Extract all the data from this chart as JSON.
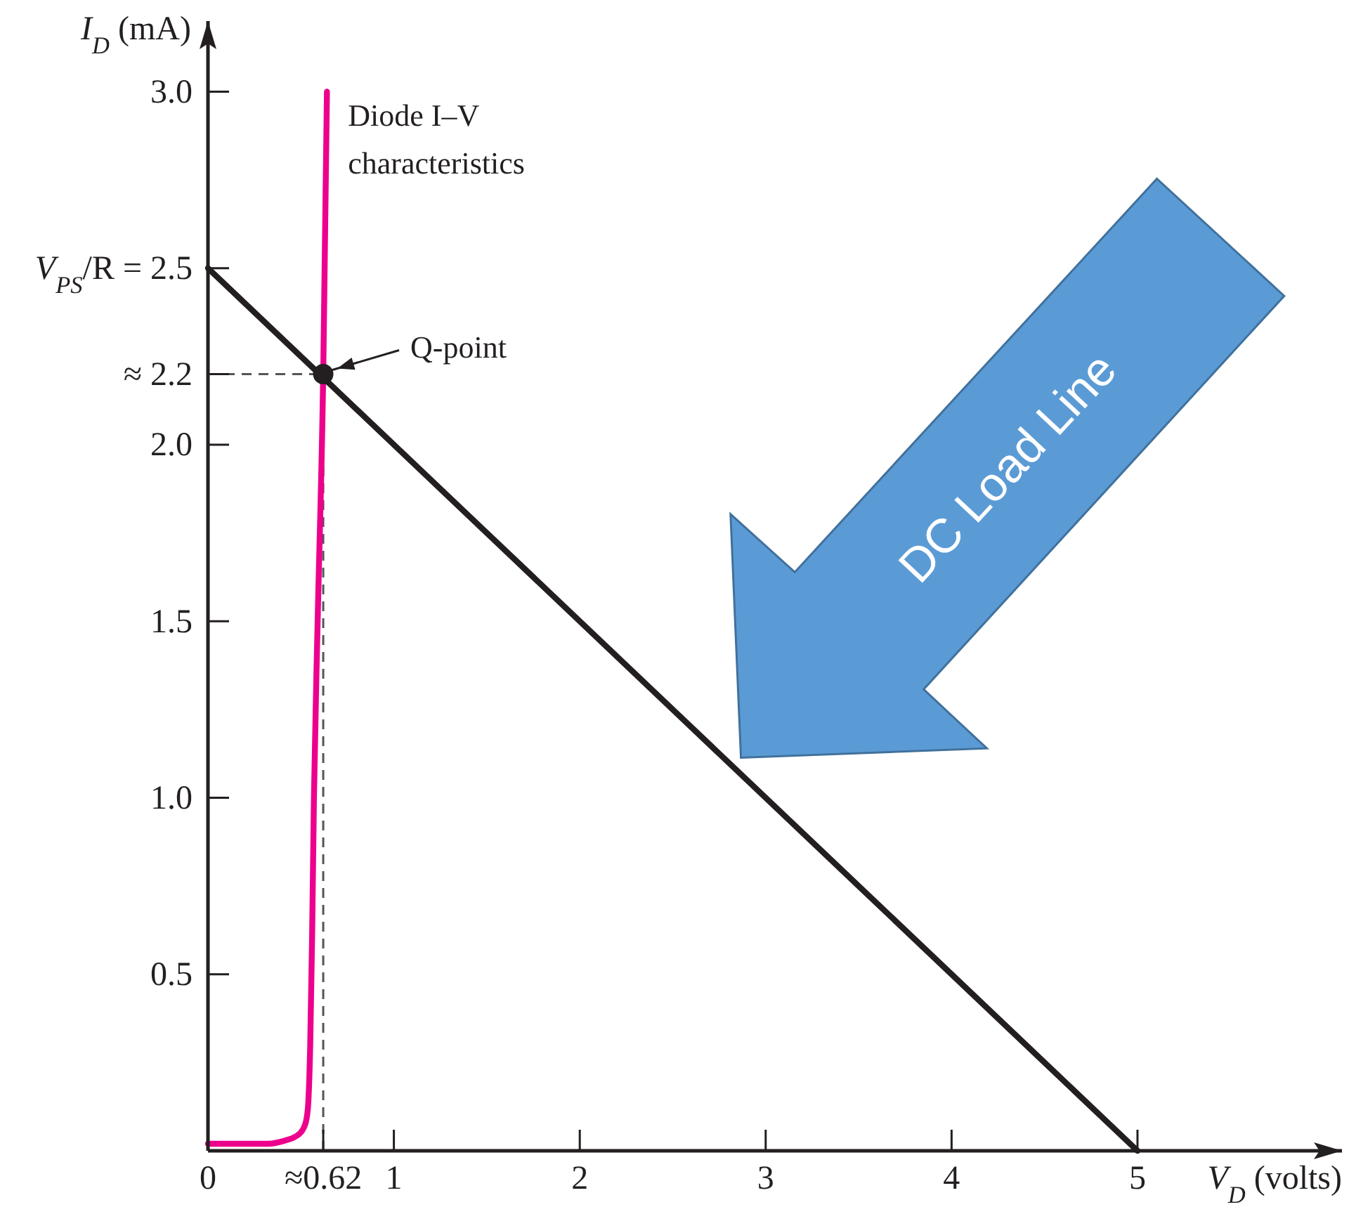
{
  "chart_data": {
    "type": "line",
    "xlabel": "V$_{D}$ (volts)",
    "ylabel": "I$_{D}$ (mA)",
    "xlim": [
      0,
      6.1
    ],
    "ylim": [
      0,
      3.2
    ],
    "xticks": [
      0,
      {
        "value": 0.62,
        "label": "≈0.62"
      },
      1,
      2,
      3,
      4,
      5
    ],
    "yticks": [
      0.5,
      {
        "value": 1,
        "label": "1.0"
      },
      1.5,
      {
        "value": 2,
        "label": "2.0"
      },
      {
        "value": 2.2,
        "label": "≈ 2.2"
      },
      {
        "value": 2.5,
        "label": "V$_{PS}$/R = 2.5"
      },
      {
        "value": 3,
        "label": "3.0"
      }
    ],
    "series": [
      {
        "color": "#555555",
        "line_style": "dashed",
        "x": [
          0,
          0.62
        ],
        "values": [
          2.2,
          2.2
        ]
      },
      {
        "color": "#555555",
        "line_style": "dashed",
        "x": [
          0.62,
          0.62
        ],
        "values": [
          0,
          2.2
        ]
      },
      {
        "color": "#ec008c",
        "name": "Diode I–V characteristics",
        "x": [
          0,
          0.32,
          0.42,
          0.47,
          0.51,
          0.53,
          0.54,
          0.55,
          0.56,
          0.57,
          0.59,
          0.62,
          0.64
        ],
        "values": [
          0.02,
          0.02,
          0.03,
          0.04,
          0.06,
          0.09,
          0.14,
          0.3,
          0.6,
          1.0,
          1.5,
          2.2,
          3.0
        ]
      },
      {
        "color": "#231f20",
        "x": [
          0,
          5
        ],
        "values": [
          2.5,
          0
        ]
      },
      {
        "type": "scatter",
        "color": "#231f20",
        "marker": "circle",
        "x": [
          0.62
        ],
        "values": [
          2.2
        ]
      }
    ],
    "annotations": [
      {
        "text": "Q-point",
        "x": 0.62,
        "y": 2.2
      },
      "DC Load Line"
    ]
  }
}
